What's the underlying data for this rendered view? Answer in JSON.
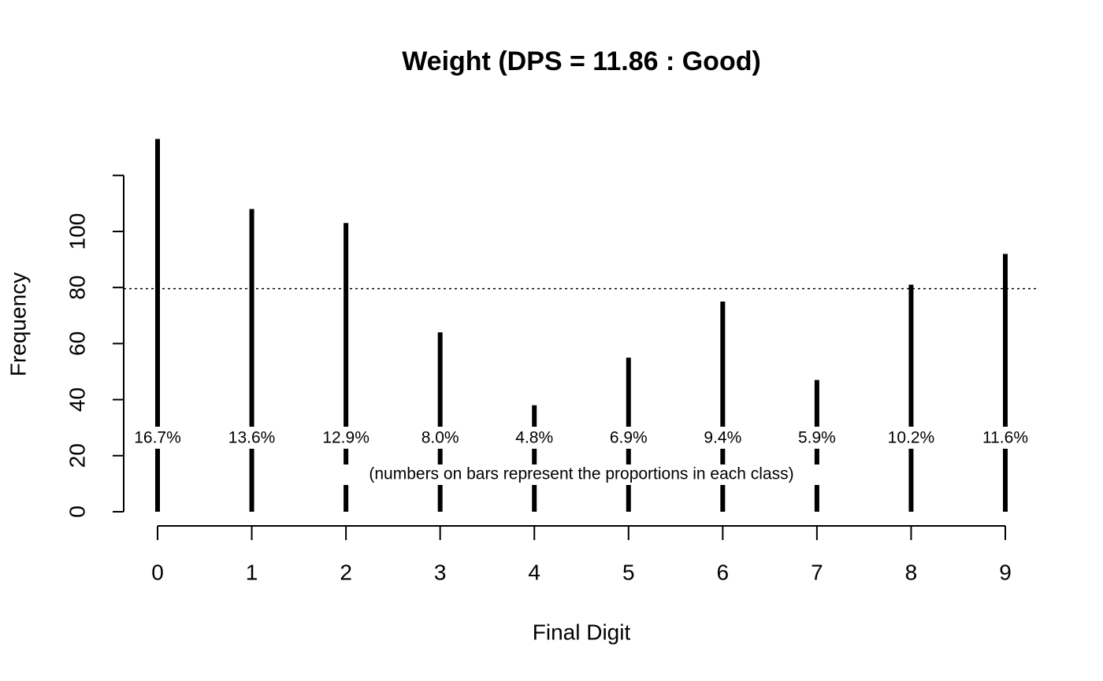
{
  "chart_data": {
    "type": "spike",
    "title": "Weight (DPS = 11.86 : Good)",
    "xlabel": "Final Digit",
    "ylabel": "Frequency",
    "annotation": "(numbers on bars represent the proportions in each class)",
    "categories": [
      "0",
      "1",
      "2",
      "3",
      "4",
      "5",
      "6",
      "7",
      "8",
      "9"
    ],
    "values": [
      133,
      108,
      103,
      64,
      38,
      55,
      75,
      47,
      81,
      92
    ],
    "value_labels": [
      "16.7%",
      "13.6%",
      "12.9%",
      "8.0%",
      "4.8%",
      "6.9%",
      "9.4%",
      "5.9%",
      "10.2%",
      "11.6%"
    ],
    "reference_line": 79.6,
    "color": "#000000",
    "ylim": [
      0,
      133
    ],
    "yticks": [
      0,
      20,
      40,
      60,
      80,
      100,
      {
        "value": 120,
        "label": null
      }
    ]
  }
}
